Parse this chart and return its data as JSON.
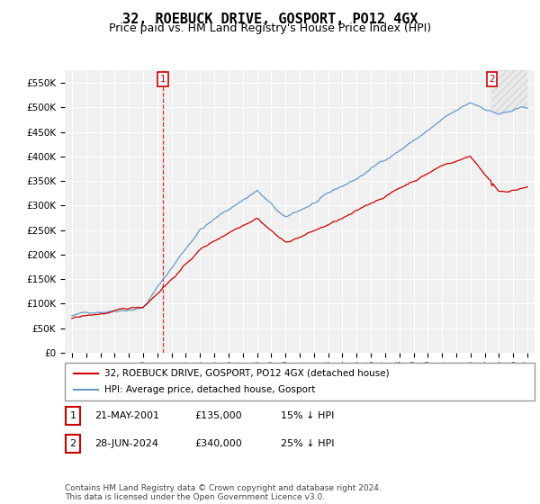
{
  "title": "32, ROEBUCK DRIVE, GOSPORT, PO12 4GX",
  "subtitle": "Price paid vs. HM Land Registry's House Price Index (HPI)",
  "ylim": [
    0,
    575000
  ],
  "yticks": [
    0,
    50000,
    100000,
    150000,
    200000,
    250000,
    300000,
    350000,
    400000,
    450000,
    500000,
    550000
  ],
  "hpi_color": "#6699cc",
  "price_color": "#cc0000",
  "marker1_price": 135000,
  "marker2_price": 340000,
  "legend_label1": "32, ROEBUCK DRIVE, GOSPORT, PO12 4GX (detached house)",
  "legend_label2": "HPI: Average price, detached house, Gosport",
  "table_row1": [
    "1",
    "21-MAY-2001",
    "£135,000",
    "15% ↓ HPI"
  ],
  "table_row2": [
    "2",
    "28-JUN-2024",
    "£340,000",
    "25% ↓ HPI"
  ],
  "footnote": "Contains HM Land Registry data © Crown copyright and database right 2024.\nThis data is licensed under the Open Government Licence v3.0.",
  "title_fontsize": 11,
  "subtitle_fontsize": 9,
  "tick_fontsize": 7.5
}
